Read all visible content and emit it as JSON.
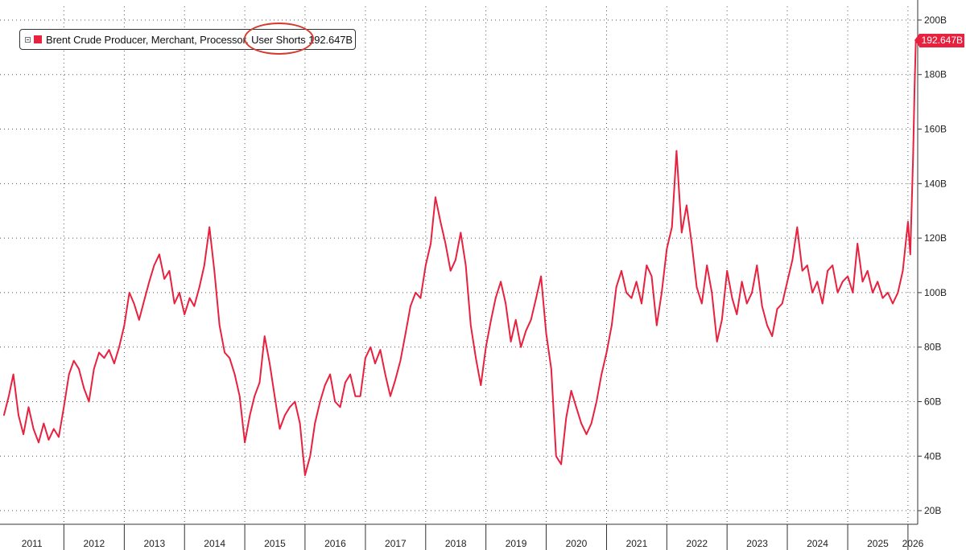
{
  "chart_data": {
    "type": "line",
    "title": "",
    "xlabel": "",
    "ylabel": "",
    "x_tick_labels": [
      "2011",
      "2012",
      "2013",
      "2014",
      "2015",
      "2016",
      "2017",
      "2018",
      "2019",
      "2020",
      "2021",
      "2022",
      "2023",
      "2024",
      "2025",
      "2026"
    ],
    "y_tick_labels": [
      "20B",
      "40B",
      "60B",
      "80B",
      "100B",
      "120B",
      "140B",
      "160B",
      "180B",
      "200B"
    ],
    "ylim": [
      15,
      205
    ],
    "xlim": [
      "2011-01",
      "2026-03"
    ],
    "grid": true,
    "legend_position": "top-left",
    "series": [
      {
        "name": "Brent Crude Producer, Merchant, Processor, User Shorts",
        "color": "#e8213f",
        "last_value_label": "192.647B",
        "points": [
          [
            "2011-01-03",
            55
          ],
          [
            "2011-02-01",
            62
          ],
          [
            "2011-03-01",
            70
          ],
          [
            "2011-04-01",
            55
          ],
          [
            "2011-05-01",
            48
          ],
          [
            "2011-06-01",
            58
          ],
          [
            "2011-07-01",
            50
          ],
          [
            "2011-08-01",
            45
          ],
          [
            "2011-09-01",
            52
          ],
          [
            "2011-10-01",
            46
          ],
          [
            "2011-11-01",
            50
          ],
          [
            "2011-12-01",
            47
          ],
          [
            "2012-01-01",
            58
          ],
          [
            "2012-02-01",
            70
          ],
          [
            "2012-03-01",
            75
          ],
          [
            "2012-04-01",
            72
          ],
          [
            "2012-05-01",
            65
          ],
          [
            "2012-06-01",
            60
          ],
          [
            "2012-07-01",
            72
          ],
          [
            "2012-08-01",
            78
          ],
          [
            "2012-09-01",
            76
          ],
          [
            "2012-10-01",
            79
          ],
          [
            "2012-11-01",
            74
          ],
          [
            "2012-12-01",
            80
          ],
          [
            "2013-01-01",
            88
          ],
          [
            "2013-02-01",
            100
          ],
          [
            "2013-03-01",
            96
          ],
          [
            "2013-04-01",
            90
          ],
          [
            "2013-05-01",
            97
          ],
          [
            "2013-06-01",
            104
          ],
          [
            "2013-07-01",
            110
          ],
          [
            "2013-08-01",
            114
          ],
          [
            "2013-09-01",
            105
          ],
          [
            "2013-10-01",
            108
          ],
          [
            "2013-11-01",
            96
          ],
          [
            "2013-12-01",
            100
          ],
          [
            "2014-01-01",
            92
          ],
          [
            "2014-02-01",
            98
          ],
          [
            "2014-03-01",
            95
          ],
          [
            "2014-04-01",
            102
          ],
          [
            "2014-05-01",
            110
          ],
          [
            "2014-06-01",
            124
          ],
          [
            "2014-07-01",
            108
          ],
          [
            "2014-08-01",
            88
          ],
          [
            "2014-09-01",
            78
          ],
          [
            "2014-10-01",
            76
          ],
          [
            "2014-11-01",
            70
          ],
          [
            "2014-12-01",
            62
          ],
          [
            "2015-01-01",
            45
          ],
          [
            "2015-02-01",
            55
          ],
          [
            "2015-03-01",
            62
          ],
          [
            "2015-04-01",
            67
          ],
          [
            "2015-05-01",
            84
          ],
          [
            "2015-06-01",
            74
          ],
          [
            "2015-07-01",
            62
          ],
          [
            "2015-08-01",
            50
          ],
          [
            "2015-09-01",
            55
          ],
          [
            "2015-10-01",
            58
          ],
          [
            "2015-11-01",
            60
          ],
          [
            "2015-12-01",
            52
          ],
          [
            "2016-01-01",
            33
          ],
          [
            "2016-02-01",
            40
          ],
          [
            "2016-03-01",
            52
          ],
          [
            "2016-04-01",
            60
          ],
          [
            "2016-05-01",
            66
          ],
          [
            "2016-06-01",
            70
          ],
          [
            "2016-07-01",
            60
          ],
          [
            "2016-08-01",
            58
          ],
          [
            "2016-09-01",
            67
          ],
          [
            "2016-10-01",
            70
          ],
          [
            "2016-11-01",
            62
          ],
          [
            "2016-12-01",
            62
          ],
          [
            "2017-01-01",
            76
          ],
          [
            "2017-02-01",
            80
          ],
          [
            "2017-03-01",
            74
          ],
          [
            "2017-04-01",
            79
          ],
          [
            "2017-05-01",
            70
          ],
          [
            "2017-06-01",
            62
          ],
          [
            "2017-07-01",
            68
          ],
          [
            "2017-08-01",
            75
          ],
          [
            "2017-09-01",
            85
          ],
          [
            "2017-10-01",
            95
          ],
          [
            "2017-11-01",
            100
          ],
          [
            "2017-12-01",
            98
          ],
          [
            "2018-01-01",
            110
          ],
          [
            "2018-02-01",
            118
          ],
          [
            "2018-03-01",
            135
          ],
          [
            "2018-04-01",
            126
          ],
          [
            "2018-05-01",
            118
          ],
          [
            "2018-06-01",
            108
          ],
          [
            "2018-07-01",
            112
          ],
          [
            "2018-08-01",
            122
          ],
          [
            "2018-09-01",
            110
          ],
          [
            "2018-10-01",
            88
          ],
          [
            "2018-11-01",
            76
          ],
          [
            "2018-12-01",
            66
          ],
          [
            "2019-01-01",
            80
          ],
          [
            "2019-02-01",
            90
          ],
          [
            "2019-03-01",
            98
          ],
          [
            "2019-04-01",
            104
          ],
          [
            "2019-05-01",
            96
          ],
          [
            "2019-06-01",
            82
          ],
          [
            "2019-07-01",
            90
          ],
          [
            "2019-08-01",
            80
          ],
          [
            "2019-09-01",
            86
          ],
          [
            "2019-10-01",
            90
          ],
          [
            "2019-11-01",
            98
          ],
          [
            "2019-12-01",
            106
          ],
          [
            "2020-01-01",
            85
          ],
          [
            "2020-02-01",
            72
          ],
          [
            "2020-03-01",
            40
          ],
          [
            "2020-04-01",
            37
          ],
          [
            "2020-05-01",
            54
          ],
          [
            "2020-06-01",
            64
          ],
          [
            "2020-07-01",
            58
          ],
          [
            "2020-08-01",
            52
          ],
          [
            "2020-09-01",
            48
          ],
          [
            "2020-10-01",
            52
          ],
          [
            "2020-11-01",
            60
          ],
          [
            "2020-12-01",
            70
          ],
          [
            "2021-01-01",
            78
          ],
          [
            "2021-02-01",
            88
          ],
          [
            "2021-03-01",
            102
          ],
          [
            "2021-04-01",
            108
          ],
          [
            "2021-05-01",
            100
          ],
          [
            "2021-06-01",
            98
          ],
          [
            "2021-07-01",
            104
          ],
          [
            "2021-08-01",
            96
          ],
          [
            "2021-09-01",
            110
          ],
          [
            "2021-10-01",
            106
          ],
          [
            "2021-11-01",
            88
          ],
          [
            "2021-12-01",
            100
          ],
          [
            "2022-01-01",
            116
          ],
          [
            "2022-02-01",
            124
          ],
          [
            "2022-03-01",
            152
          ],
          [
            "2022-04-01",
            122
          ],
          [
            "2022-05-01",
            132
          ],
          [
            "2022-06-01",
            118
          ],
          [
            "2022-07-01",
            102
          ],
          [
            "2022-08-01",
            96
          ],
          [
            "2022-09-01",
            110
          ],
          [
            "2022-10-01",
            100
          ],
          [
            "2022-11-01",
            82
          ],
          [
            "2022-12-01",
            90
          ],
          [
            "2023-01-01",
            108
          ],
          [
            "2023-02-01",
            98
          ],
          [
            "2023-03-01",
            92
          ],
          [
            "2023-04-01",
            104
          ],
          [
            "2023-05-01",
            96
          ],
          [
            "2023-06-01",
            100
          ],
          [
            "2023-07-01",
            110
          ],
          [
            "2023-08-01",
            95
          ],
          [
            "2023-09-01",
            88
          ],
          [
            "2023-10-01",
            84
          ],
          [
            "2023-11-01",
            94
          ],
          [
            "2023-12-01",
            96
          ],
          [
            "2024-01-01",
            104
          ],
          [
            "2024-02-01",
            112
          ],
          [
            "2024-03-01",
            124
          ],
          [
            "2024-04-01",
            108
          ],
          [
            "2024-05-01",
            110
          ],
          [
            "2024-06-01",
            100
          ],
          [
            "2024-07-01",
            104
          ],
          [
            "2024-08-01",
            96
          ],
          [
            "2024-09-01",
            108
          ],
          [
            "2024-10-01",
            110
          ],
          [
            "2024-11-01",
            100
          ],
          [
            "2024-12-01",
            104
          ],
          [
            "2025-01-01",
            106
          ],
          [
            "2025-02-01",
            100
          ],
          [
            "2025-03-01",
            118
          ],
          [
            "2025-04-01",
            104
          ],
          [
            "2025-05-01",
            108
          ],
          [
            "2025-06-01",
            100
          ],
          [
            "2025-07-01",
            104
          ],
          [
            "2025-08-01",
            98
          ],
          [
            "2025-09-01",
            100
          ],
          [
            "2025-10-01",
            96
          ],
          [
            "2025-11-01",
            100
          ],
          [
            "2025-12-01",
            108
          ],
          [
            "2026-01-01",
            126
          ],
          [
            "2026-01-15",
            114
          ],
          [
            "2026-02-01",
            150
          ],
          [
            "2026-02-10",
            175
          ],
          [
            "2026-02-18",
            192.647
          ]
        ]
      }
    ]
  },
  "legend": {
    "label": "Brent Crude Producer, Merchant, Processor, User Shorts 192.647B",
    "expand_icon": "expand-square-icon"
  },
  "last_value_tag": "192.647B",
  "annotation": {
    "type": "circle",
    "color": "#d63a2e",
    "target": "legend-text"
  }
}
